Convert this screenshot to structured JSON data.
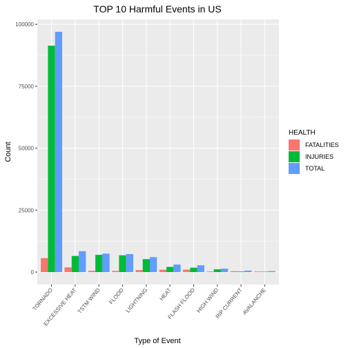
{
  "chart_data": {
    "type": "bar",
    "title": "TOP 10 Harmful Events in US",
    "xlabel": "Type of Event",
    "ylabel": "Count",
    "categories": [
      "TORNADO",
      "EXCESSIVE HEAT",
      "TSTM WIND",
      "FLOOD",
      "LIGHTNING",
      "HEAT",
      "FLASH FLOOD",
      "HIGH WIND",
      "RIP CURRENT",
      "AVALANCHE"
    ],
    "series": [
      {
        "name": "FATALITIES",
        "color": "#F8766D",
        "values": [
          5633,
          1903,
          504,
          470,
          816,
          937,
          978,
          248,
          368,
          224
        ]
      },
      {
        "name": "INJURIES",
        "color": "#00BA38",
        "values": [
          91346,
          6525,
          6957,
          6789,
          5230,
          2100,
          1777,
          1137,
          232,
          170
        ]
      },
      {
        "name": "TOTAL",
        "color": "#619CFF",
        "values": [
          96979,
          8428,
          7461,
          7259,
          6046,
          3037,
          2755,
          1385,
          600,
          394
        ]
      }
    ],
    "ylim": [
      -5000,
      102000
    ],
    "yticks": [
      0,
      25000,
      50000,
      75000,
      100000
    ],
    "ytick_labels": [
      "0",
      "25000",
      "50000",
      "75000",
      "100000"
    ],
    "grid": true,
    "legend": {
      "title": "HEALTH",
      "placement": "right"
    }
  }
}
